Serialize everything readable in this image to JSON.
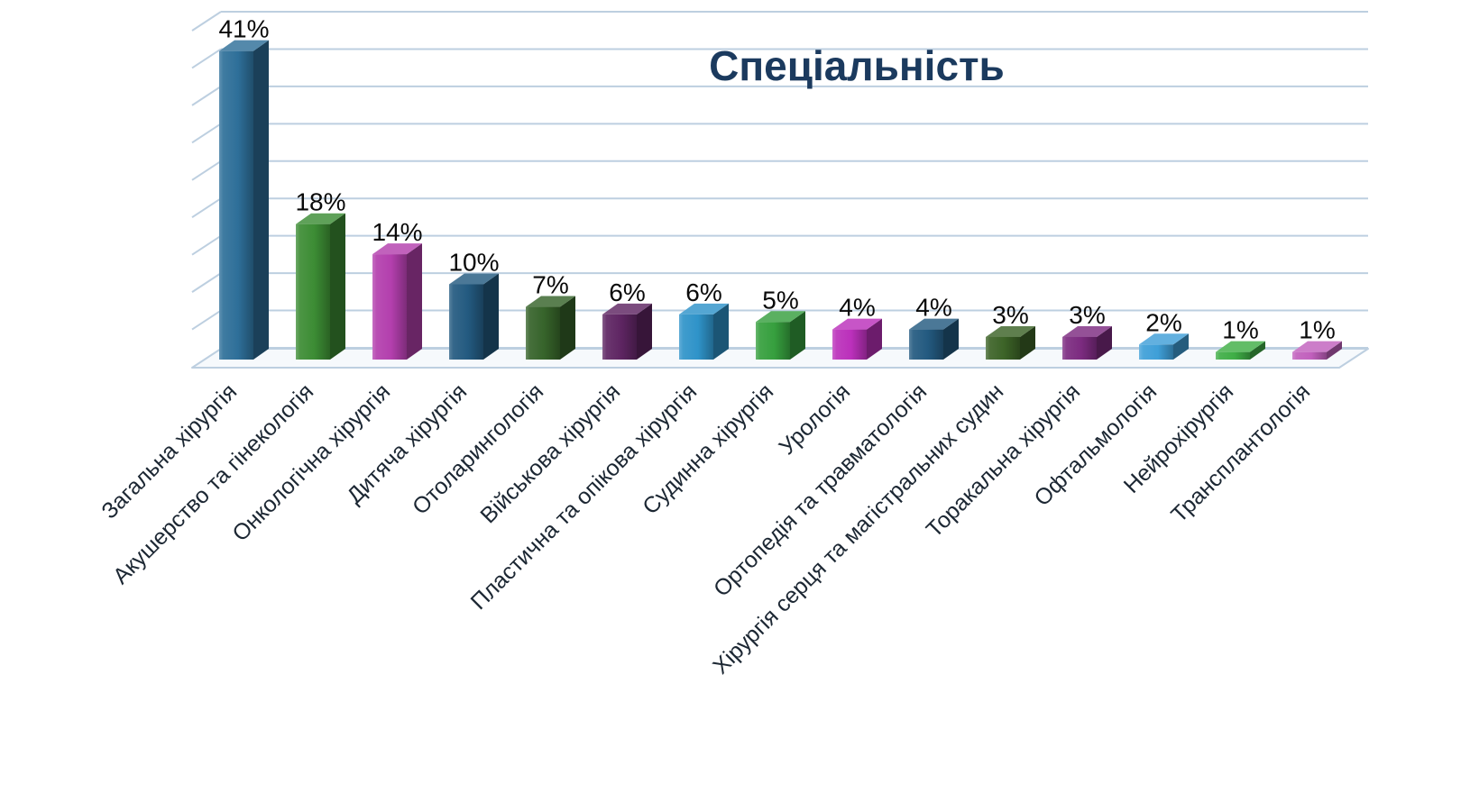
{
  "chart_data": {
    "type": "bar",
    "style": "3d-column",
    "title": "Спеціальність",
    "title_color": "#1b3a5e",
    "categories": [
      "Загальна хірургія",
      "Акушерство та гінекологія",
      "Онкологічна хірургія",
      "Дитяча хірургія",
      "Отоларингологія",
      "Військова хірургія",
      "Пластична та опікова хірургія",
      "Судинна хірургія",
      "Урологія",
      "Ортопедія та травматологія",
      "Хірургія серця та магістральних судин",
      "Торакальна хірургія",
      "Офтальмологія",
      "Нейрохірургія",
      "Трансплантологія"
    ],
    "values": [
      41,
      18,
      14,
      10,
      7,
      6,
      6,
      5,
      4,
      4,
      3,
      3,
      2,
      1,
      1
    ],
    "value_suffix": "%",
    "value_labels": [
      "41%",
      "18%",
      "14%",
      "10%",
      "7%",
      "6%",
      "6%",
      "5%",
      "4%",
      "4%",
      "3%",
      "3%",
      "2%",
      "1%",
      "1%"
    ],
    "bar_colors": [
      "#2e6f99",
      "#3c8c34",
      "#b33fad",
      "#235a80",
      "#36632a",
      "#5e2562",
      "#2f93c9",
      "#369f3e",
      "#bb30bb",
      "#235a80",
      "#3c6327",
      "#7c2b80",
      "#3f9fd8",
      "#3fae46",
      "#c160bd"
    ],
    "value_label_color": "#0a0a0a",
    "category_label_color": "#1c2733",
    "category_label_angle_deg": -45,
    "gridline_color": "#bdcfe0",
    "floor_fill": "#f6f9fc",
    "background": "#ffffff",
    "ylim": [
      0,
      45
    ],
    "grid": true,
    "gridline_step_pct": 5,
    "legend": "none",
    "xlabel": "",
    "ylabel": ""
  }
}
